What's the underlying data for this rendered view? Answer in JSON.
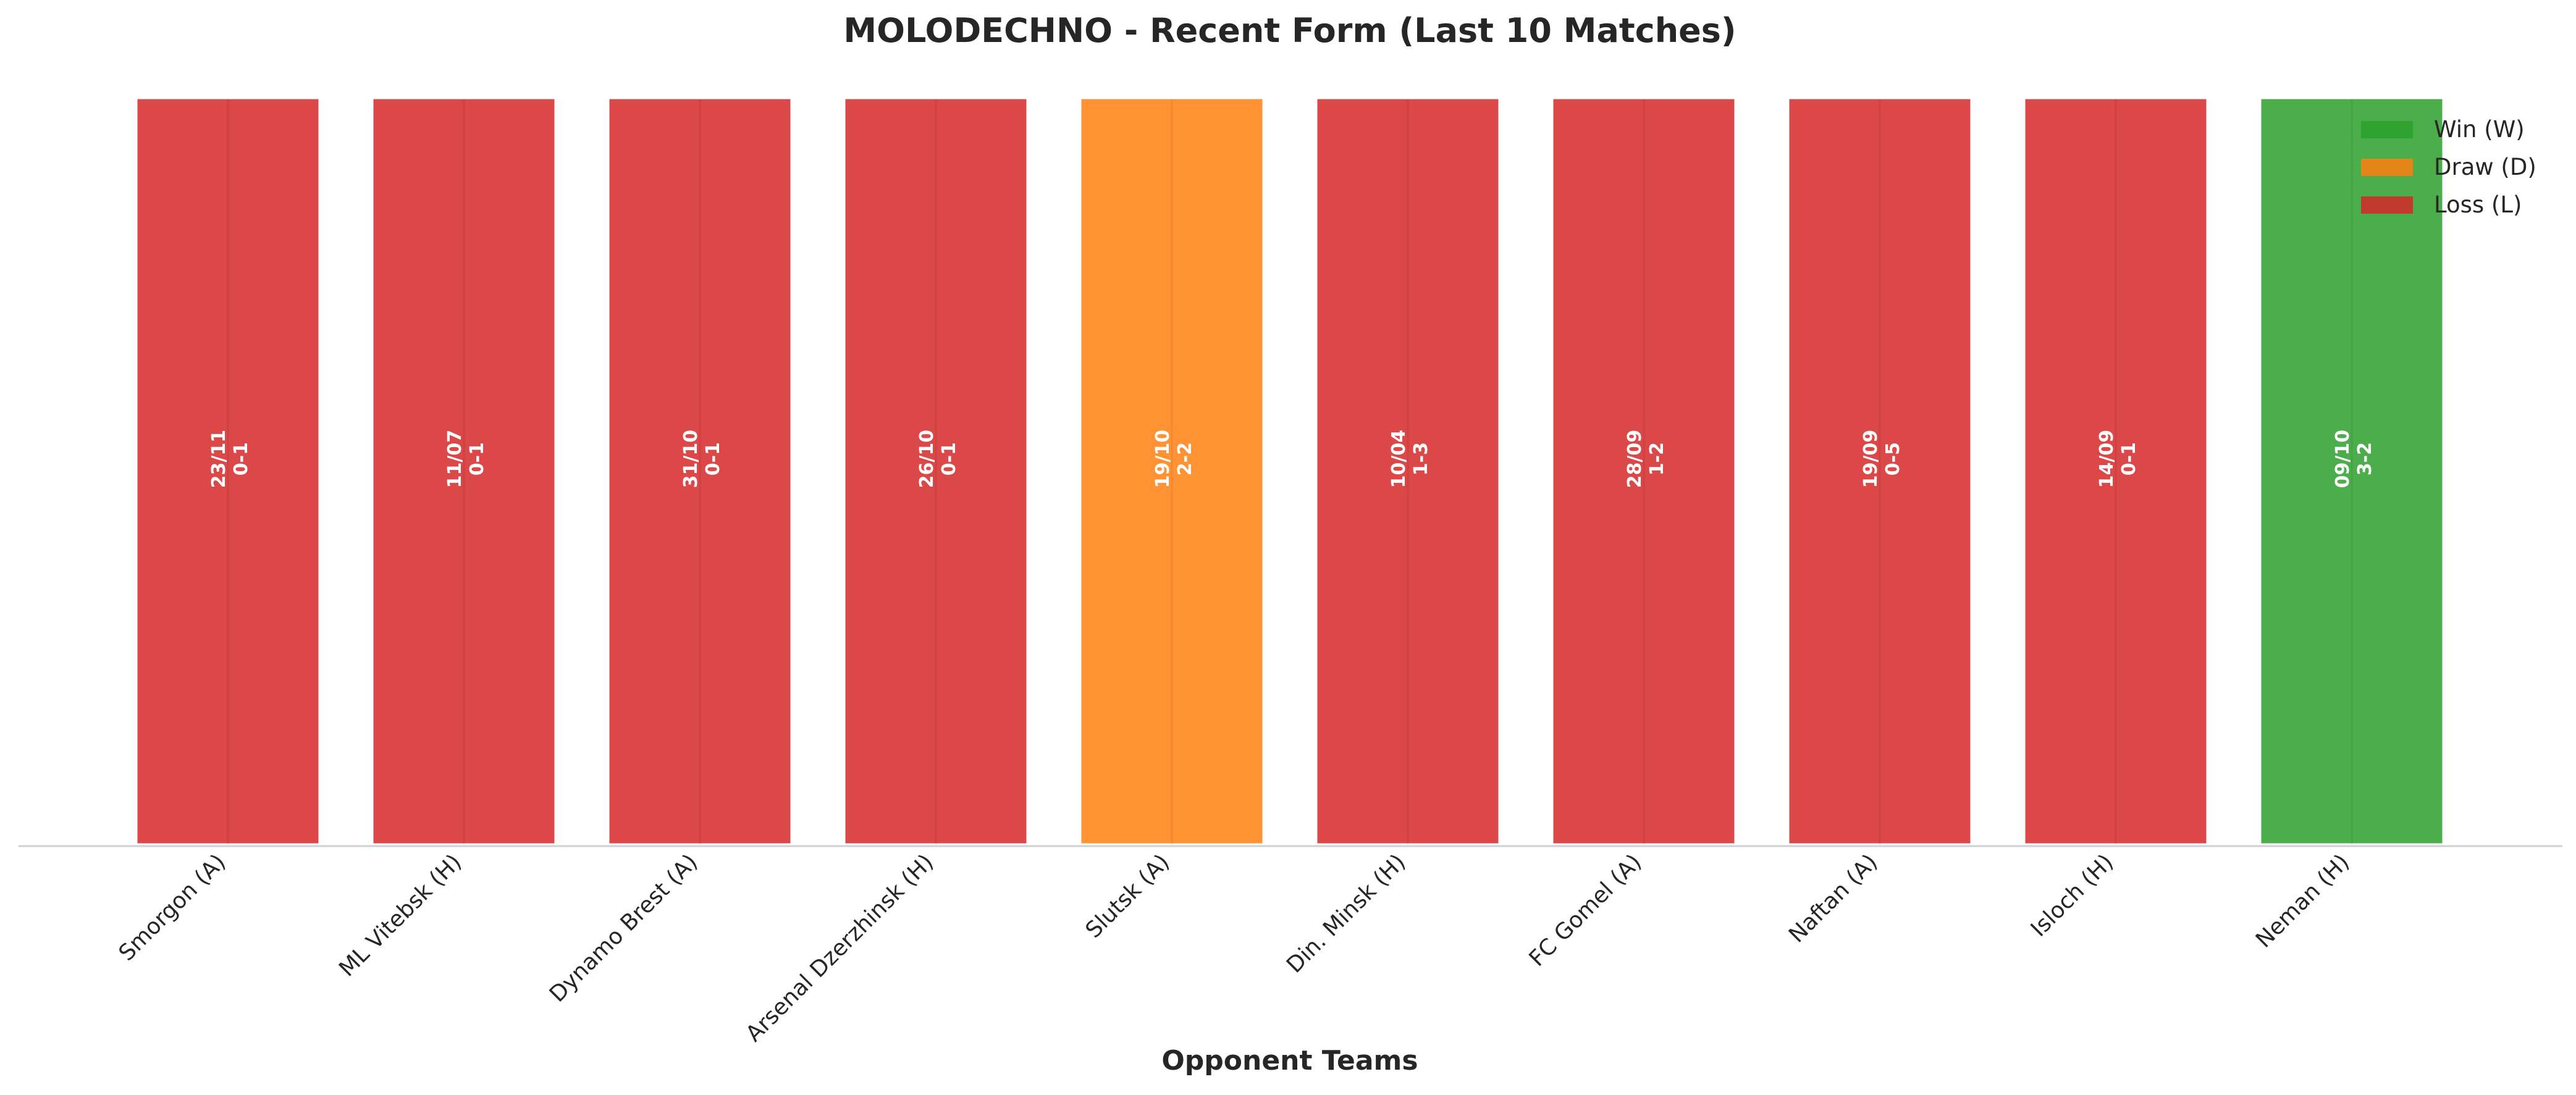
{
  "chart_data": {
    "type": "bar",
    "title": "MOLODECHNO - Recent Form (Last 10 Matches)",
    "xlabel": "Opponent Teams",
    "ylabel": "",
    "grid": false,
    "legend_position": "top-right",
    "categories": [
      "Smorgon (A)",
      "ML Vitebsk (H)",
      "Dynamo Brest (A)",
      "Arsenal Dzerzhinsk (H)",
      "Slutsk (A)",
      "Din. Minsk (H)",
      "FC Gomel (A)",
      "Naftan (A)",
      "Isloch (H)",
      "Neman (H)"
    ],
    "values": [
      1,
      1,
      1,
      1,
      1,
      1,
      1,
      1,
      1,
      1
    ],
    "results": [
      "L",
      "L",
      "L",
      "L",
      "D",
      "L",
      "L",
      "L",
      "L",
      "W"
    ],
    "dates": [
      "23/11",
      "11/07",
      "31/10",
      "26/10",
      "19/10",
      "10/04",
      "28/09",
      "19/09",
      "14/09",
      "09/10"
    ],
    "scores": [
      "0-1",
      "0-1",
      "0-1",
      "0-1",
      "2-2",
      "1-3",
      "1-2",
      "0-5",
      "0-1",
      "3-2"
    ],
    "legend": [
      {
        "key": "W",
        "label": "Win (W)",
        "color": "#2ca02c"
      },
      {
        "key": "D",
        "label": "Draw (D)",
        "color": "#ff7f0e"
      },
      {
        "key": "L",
        "label": "Loss (L)",
        "color": "#d62728"
      }
    ]
  }
}
